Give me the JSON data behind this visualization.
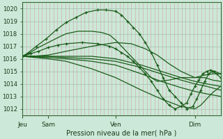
{
  "background_color": "#cce8d8",
  "grid_color_v": "#d4a0a0",
  "grid_color_h": "#9fbfaf",
  "line_color": "#1a5c1a",
  "ylabel_text": "Pression niveau de la mer( hPa )",
  "xtick_labels": [
    "Jeu",
    "Sam",
    "Ven",
    "Dim"
  ],
  "xtick_positions": [
    0.0,
    0.13,
    0.47,
    0.87
  ],
  "ylim": [
    1011.5,
    1020.5
  ],
  "yticks": [
    1012,
    1013,
    1014,
    1015,
    1016,
    1017,
    1018,
    1019,
    1020
  ],
  "series": [
    {
      "x": [
        0.0,
        0.03,
        0.07,
        0.12,
        0.17,
        0.22,
        0.27,
        0.32,
        0.38,
        0.42,
        0.47,
        0.5,
        0.53,
        0.56,
        0.59,
        0.62,
        0.65,
        0.68,
        0.71,
        0.74,
        0.77,
        0.8,
        0.83,
        0.86,
        0.88,
        0.9,
        0.92,
        0.94,
        0.96,
        0.98,
        1.0
      ],
      "y": [
        1016.2,
        1016.5,
        1017.0,
        1017.6,
        1018.3,
        1018.9,
        1019.3,
        1019.7,
        1019.9,
        1019.9,
        1019.8,
        1019.5,
        1019.0,
        1018.5,
        1018.0,
        1017.3,
        1016.5,
        1015.5,
        1014.5,
        1013.5,
        1013.0,
        1012.5,
        1012.0,
        1012.2,
        1012.8,
        1013.5,
        1014.2,
        1014.8,
        1015.0,
        1014.8,
        1014.5
      ],
      "marker": "+"
    },
    {
      "x": [
        0.0,
        0.04,
        0.08,
        0.13,
        0.18,
        0.22,
        0.3,
        0.38,
        0.44,
        0.47,
        0.5,
        0.53,
        0.56,
        0.59,
        0.62,
        0.65,
        0.68,
        0.71,
        0.74,
        0.77,
        0.8,
        0.83,
        0.85,
        0.87,
        0.89,
        0.91,
        0.93,
        0.95,
        0.97,
        1.0
      ],
      "y": [
        1016.2,
        1016.4,
        1016.6,
        1016.9,
        1017.1,
        1017.2,
        1017.3,
        1017.2,
        1017.0,
        1016.8,
        1016.5,
        1016.2,
        1015.8,
        1015.3,
        1014.8,
        1014.2,
        1013.5,
        1012.8,
        1012.3,
        1012.0,
        1012.2,
        1012.5,
        1013.2,
        1013.8,
        1014.3,
        1014.8,
        1015.0,
        1015.1,
        1015.0,
        1014.8
      ],
      "marker": "+"
    },
    {
      "x": [
        0.0,
        0.05,
        0.13,
        0.22,
        0.35,
        0.47,
        0.55,
        0.62,
        0.68,
        0.74,
        0.8,
        0.87,
        0.92,
        0.96,
        1.0
      ],
      "y": [
        1016.2,
        1016.2,
        1016.3,
        1016.6,
        1017.0,
        1017.3,
        1017.2,
        1016.8,
        1016.3,
        1015.6,
        1015.0,
        1014.5,
        1014.5,
        1014.3,
        1014.2
      ],
      "marker": null
    },
    {
      "x": [
        0.0,
        0.13,
        0.22,
        0.35,
        0.47,
        0.6,
        0.7,
        0.8,
        0.87,
        0.93,
        1.0
      ],
      "y": [
        1016.2,
        1016.2,
        1016.2,
        1016.2,
        1016.0,
        1015.5,
        1015.0,
        1014.5,
        1014.2,
        1014.0,
        1013.8
      ],
      "marker": null
    },
    {
      "x": [
        0.0,
        0.13,
        0.22,
        0.35,
        0.47,
        0.6,
        0.7,
        0.8,
        0.87,
        0.93,
        1.0
      ],
      "y": [
        1016.2,
        1016.2,
        1016.1,
        1016.0,
        1015.8,
        1015.3,
        1014.8,
        1014.3,
        1014.0,
        1013.8,
        1013.5
      ],
      "marker": null
    },
    {
      "x": [
        0.0,
        0.13,
        0.22,
        0.35,
        0.47,
        0.6,
        0.7,
        0.8,
        0.87,
        0.93,
        1.0
      ],
      "y": [
        1016.2,
        1016.1,
        1016.0,
        1015.8,
        1015.5,
        1014.8,
        1014.2,
        1013.7,
        1013.4,
        1013.2,
        1013.0
      ],
      "marker": null
    },
    {
      "x": [
        0.0,
        0.13,
        0.22,
        0.35,
        0.47,
        0.6,
        0.7,
        0.8,
        0.87,
        0.9,
        0.93,
        0.96,
        1.0
      ],
      "y": [
        1016.2,
        1016.0,
        1015.8,
        1015.2,
        1014.5,
        1013.5,
        1012.8,
        1012.2,
        1012.0,
        1012.3,
        1012.8,
        1013.3,
        1013.8
      ],
      "marker": null
    },
    {
      "x": [
        0.0,
        0.04,
        0.08,
        0.13,
        0.18,
        0.22,
        0.28,
        0.35,
        0.4,
        0.44,
        0.47,
        0.5,
        0.53,
        0.56,
        0.59,
        0.62,
        0.65,
        0.68,
        0.74,
        0.8,
        0.87,
        0.92,
        0.96,
        1.0
      ],
      "y": [
        1016.2,
        1016.5,
        1016.9,
        1017.3,
        1017.7,
        1018.0,
        1018.2,
        1018.2,
        1018.1,
        1017.9,
        1017.5,
        1017.0,
        1016.5,
        1016.0,
        1015.5,
        1015.0,
        1014.5,
        1014.2,
        1014.3,
        1014.5,
        1014.5,
        1014.7,
        1014.8,
        1014.8
      ],
      "marker": null
    }
  ]
}
